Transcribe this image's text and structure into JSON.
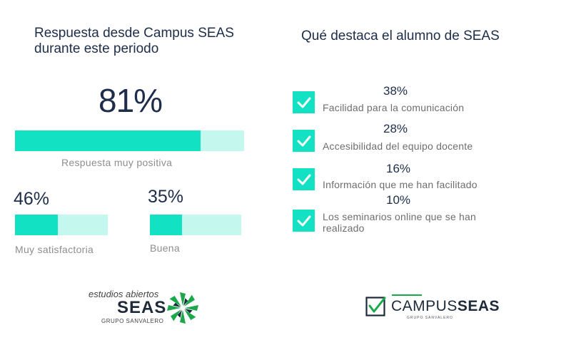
{
  "left": {
    "title_line1": "Respuesta desde Campus SEAS",
    "title_line2": "durante este periodo",
    "main": {
      "value_label": "81%",
      "value": 81,
      "label": "Respuesta muy positiva"
    },
    "sub": [
      {
        "value_label": "46%",
        "value": 46,
        "label": "Muy satisfactoria"
      },
      {
        "value_label": "35%",
        "value": 35,
        "label": "Buena"
      }
    ]
  },
  "right": {
    "title": "Qué destaca el alumno de SEAS",
    "items": [
      {
        "pct": "38%",
        "label_line1": "Facilidad para la comunicación",
        "label_line2": ""
      },
      {
        "pct": "28%",
        "label_line1": "Accesibilidad del equipo docente",
        "label_line2": ""
      },
      {
        "pct": "16%",
        "label_line1": "Información que me han facilitado",
        "label_line2": ""
      },
      {
        "pct": "10%",
        "label_line1": "Los seminarios online que se han",
        "label_line2": "realizado"
      }
    ]
  },
  "logos": {
    "seas_tagline": "estudios abiertos",
    "seas_name": "SEAS",
    "seas_group": "GRUPO SANVALERO",
    "campus_left": "CAMPUS",
    "campus_right": "SEAS",
    "campus_group": "GRUPO SANVALERO"
  },
  "colors": {
    "bar_fill": "#13e1c4",
    "bar_track": "#c4f7ee",
    "text_dark": "#1d2d4a",
    "check_fill": "#13e1c4"
  },
  "chart_data": [
    {
      "type": "bar",
      "categories": [
        "Respuesta muy positiva",
        "Muy satisfactoria",
        "Buena"
      ],
      "values": [
        81,
        46,
        35
      ],
      "ylim": [
        0,
        100
      ]
    },
    {
      "type": "table",
      "categories": [
        "Facilidad para la comunicación",
        "Accesibilidad del equipo docente",
        "Información que me han facilitado",
        "Los seminarios online que se han realizado"
      ],
      "values": [
        38,
        28,
        16,
        10
      ]
    }
  ]
}
